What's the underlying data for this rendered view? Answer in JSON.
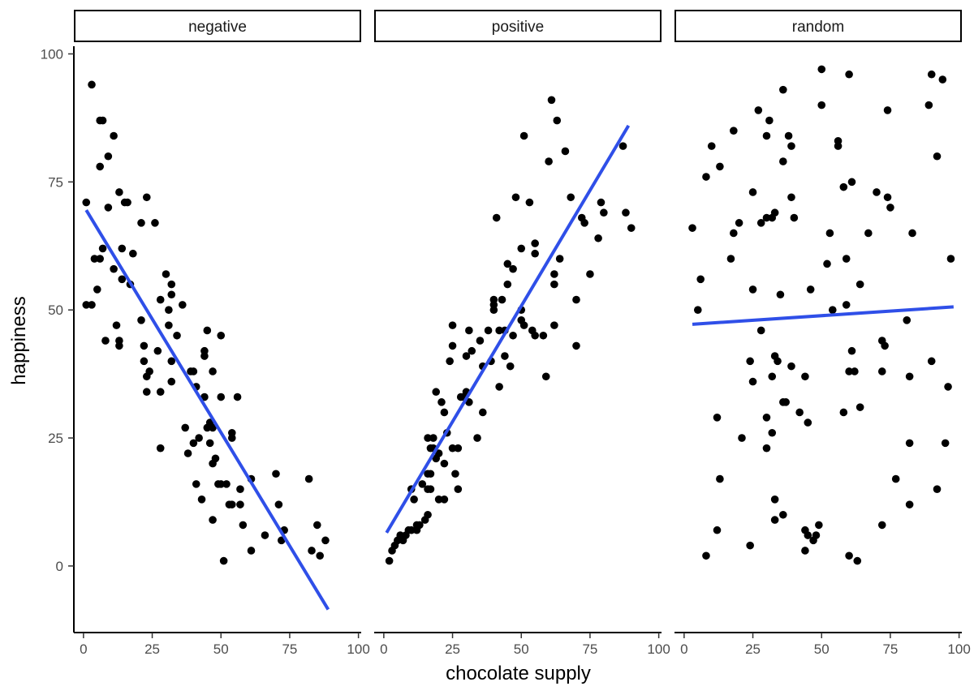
{
  "chart_data": {
    "type": "scatter",
    "xlabel": "chocolate supply",
    "ylabel": "happiness",
    "xlim": [
      -3.5,
      101
    ],
    "ylim": [
      -13,
      101.5
    ],
    "x_ticks": [
      0,
      25,
      50,
      75,
      100
    ],
    "y_ticks": [
      0,
      25,
      50,
      75,
      100
    ],
    "grid": false,
    "point_color": "#000000",
    "fit_color": "#2f4fe8",
    "panels": [
      {
        "name": "negative",
        "fit": {
          "x": [
            1,
            89
          ],
          "y": [
            69.5,
            -8.5
          ]
        },
        "points": [
          [
            1,
            71
          ],
          [
            1,
            51
          ],
          [
            3,
            94
          ],
          [
            3,
            51
          ],
          [
            4,
            60
          ],
          [
            5,
            54
          ],
          [
            6,
            78
          ],
          [
            6,
            60
          ],
          [
            6,
            87
          ],
          [
            7,
            87
          ],
          [
            7,
            62
          ],
          [
            8,
            44
          ],
          [
            9,
            70
          ],
          [
            9,
            80
          ],
          [
            11,
            84
          ],
          [
            11,
            58
          ],
          [
            12,
            47
          ],
          [
            13,
            73
          ],
          [
            13,
            44
          ],
          [
            13,
            43
          ],
          [
            14,
            62
          ],
          [
            14,
            56
          ],
          [
            15,
            71
          ],
          [
            16,
            71
          ],
          [
            17,
            55
          ],
          [
            18,
            61
          ],
          [
            21,
            67
          ],
          [
            21,
            48
          ],
          [
            22,
            43
          ],
          [
            22,
            40
          ],
          [
            23,
            72
          ],
          [
            23,
            37
          ],
          [
            23,
            34
          ],
          [
            24,
            38
          ],
          [
            26,
            67
          ],
          [
            27,
            42
          ],
          [
            28,
            52
          ],
          [
            28,
            34
          ],
          [
            28,
            23
          ],
          [
            30,
            57
          ],
          [
            31,
            50
          ],
          [
            31,
            47
          ],
          [
            32,
            55
          ],
          [
            32,
            53
          ],
          [
            32,
            40
          ],
          [
            32,
            36
          ],
          [
            34,
            45
          ],
          [
            36,
            51
          ],
          [
            37,
            27
          ],
          [
            38,
            22
          ],
          [
            39,
            38
          ],
          [
            40,
            38
          ],
          [
            40,
            24
          ],
          [
            41,
            35
          ],
          [
            41,
            16
          ],
          [
            42,
            25
          ],
          [
            43,
            13
          ],
          [
            44,
            42
          ],
          [
            44,
            41
          ],
          [
            44,
            33
          ],
          [
            45,
            46
          ],
          [
            45,
            27
          ],
          [
            46,
            24
          ],
          [
            46,
            28
          ],
          [
            47,
            27
          ],
          [
            47,
            38
          ],
          [
            47,
            20
          ],
          [
            47,
            9
          ],
          [
            48,
            21
          ],
          [
            49,
            16
          ],
          [
            50,
            45
          ],
          [
            50,
            33
          ],
          [
            50,
            16
          ],
          [
            51,
            1
          ],
          [
            52,
            16
          ],
          [
            53,
            12
          ],
          [
            54,
            12
          ],
          [
            54,
            26
          ],
          [
            54,
            25
          ],
          [
            56,
            33
          ],
          [
            57,
            15
          ],
          [
            57,
            12
          ],
          [
            58,
            8
          ],
          [
            61,
            3
          ],
          [
            61,
            17
          ],
          [
            66,
            6
          ],
          [
            70,
            18
          ],
          [
            71,
            12
          ],
          [
            72,
            5
          ],
          [
            73,
            7
          ],
          [
            82,
            17
          ],
          [
            83,
            3
          ],
          [
            85,
            8
          ],
          [
            86,
            2
          ],
          [
            88,
            5
          ]
        ]
      },
      {
        "name": "positive",
        "fit": {
          "x": [
            1,
            89
          ],
          "y": [
            6.5,
            86
          ]
        },
        "points": [
          [
            2,
            1
          ],
          [
            3,
            3
          ],
          [
            4,
            4
          ],
          [
            5,
            5
          ],
          [
            6,
            6
          ],
          [
            7,
            5
          ],
          [
            8,
            6
          ],
          [
            9,
            7
          ],
          [
            10,
            7
          ],
          [
            10,
            15
          ],
          [
            11,
            13
          ],
          [
            12,
            8
          ],
          [
            12,
            7
          ],
          [
            13,
            8
          ],
          [
            14,
            16
          ],
          [
            15,
            9
          ],
          [
            16,
            10
          ],
          [
            16,
            18
          ],
          [
            16,
            15
          ],
          [
            16,
            25
          ],
          [
            17,
            23
          ],
          [
            17,
            18
          ],
          [
            17,
            15
          ],
          [
            18,
            25
          ],
          [
            18,
            23
          ],
          [
            19,
            34
          ],
          [
            19,
            21
          ],
          [
            20,
            13
          ],
          [
            20,
            22
          ],
          [
            21,
            32
          ],
          [
            22,
            13
          ],
          [
            22,
            30
          ],
          [
            22,
            20
          ],
          [
            23,
            26
          ],
          [
            24,
            40
          ],
          [
            25,
            47
          ],
          [
            25,
            23
          ],
          [
            25,
            43
          ],
          [
            26,
            18
          ],
          [
            27,
            15
          ],
          [
            27,
            23
          ],
          [
            28,
            33
          ],
          [
            29,
            33
          ],
          [
            30,
            41
          ],
          [
            30,
            34
          ],
          [
            31,
            46
          ],
          [
            31,
            32
          ],
          [
            32,
            42
          ],
          [
            34,
            25
          ],
          [
            35,
            44
          ],
          [
            36,
            30
          ],
          [
            36,
            39
          ],
          [
            38,
            46
          ],
          [
            39,
            40
          ],
          [
            40,
            51
          ],
          [
            40,
            52
          ],
          [
            40,
            50
          ],
          [
            41,
            68
          ],
          [
            42,
            46
          ],
          [
            42,
            35
          ],
          [
            43,
            52
          ],
          [
            44,
            46
          ],
          [
            44,
            41
          ],
          [
            45,
            59
          ],
          [
            45,
            55
          ],
          [
            46,
            39
          ],
          [
            47,
            45
          ],
          [
            47,
            58
          ],
          [
            48,
            72
          ],
          [
            50,
            48
          ],
          [
            50,
            62
          ],
          [
            50,
            50
          ],
          [
            51,
            47
          ],
          [
            51,
            84
          ],
          [
            53,
            71
          ],
          [
            54,
            46
          ],
          [
            55,
            45
          ],
          [
            55,
            63
          ],
          [
            55,
            61
          ],
          [
            58,
            45
          ],
          [
            59,
            37
          ],
          [
            60,
            79
          ],
          [
            61,
            91
          ],
          [
            62,
            47
          ],
          [
            62,
            57
          ],
          [
            62,
            55
          ],
          [
            63,
            87
          ],
          [
            64,
            60
          ],
          [
            66,
            81
          ],
          [
            68,
            72
          ],
          [
            70,
            43
          ],
          [
            70,
            52
          ],
          [
            72,
            68
          ],
          [
            73,
            67
          ],
          [
            75,
            57
          ],
          [
            78,
            64
          ],
          [
            79,
            71
          ],
          [
            80,
            69
          ],
          [
            87,
            82
          ],
          [
            88,
            69
          ],
          [
            90,
            66
          ]
        ]
      },
      {
        "name": "random",
        "fit": {
          "x": [
            3,
            98
          ],
          "y": [
            47.2,
            50.6
          ]
        },
        "points": [
          [
            3,
            66
          ],
          [
            5,
            50
          ],
          [
            6,
            56
          ],
          [
            8,
            76
          ],
          [
            8,
            2
          ],
          [
            10,
            82
          ],
          [
            12,
            29
          ],
          [
            12,
            7
          ],
          [
            13,
            78
          ],
          [
            13,
            17
          ],
          [
            17,
            60
          ],
          [
            18,
            65
          ],
          [
            18,
            85
          ],
          [
            20,
            67
          ],
          [
            21,
            25
          ],
          [
            24,
            4
          ],
          [
            24,
            40
          ],
          [
            25,
            36
          ],
          [
            25,
            54
          ],
          [
            25,
            73
          ],
          [
            27,
            89
          ],
          [
            28,
            46
          ],
          [
            28,
            67
          ],
          [
            30,
            68
          ],
          [
            30,
            84
          ],
          [
            30,
            29
          ],
          [
            30,
            23
          ],
          [
            31,
            87
          ],
          [
            32,
            68
          ],
          [
            32,
            37
          ],
          [
            32,
            26
          ],
          [
            33,
            69
          ],
          [
            33,
            9
          ],
          [
            33,
            13
          ],
          [
            33,
            41
          ],
          [
            34,
            40
          ],
          [
            35,
            53
          ],
          [
            36,
            93
          ],
          [
            36,
            79
          ],
          [
            36,
            10
          ],
          [
            36,
            32
          ],
          [
            37,
            32
          ],
          [
            38,
            84
          ],
          [
            39,
            82
          ],
          [
            39,
            72
          ],
          [
            39,
            39
          ],
          [
            40,
            68
          ],
          [
            42,
            30
          ],
          [
            44,
            37
          ],
          [
            44,
            7
          ],
          [
            44,
            3
          ],
          [
            45,
            6
          ],
          [
            45,
            28
          ],
          [
            46,
            54
          ],
          [
            47,
            5
          ],
          [
            48,
            6
          ],
          [
            49,
            8
          ],
          [
            50,
            97
          ],
          [
            50,
            90
          ],
          [
            52,
            59
          ],
          [
            53,
            65
          ],
          [
            54,
            50
          ],
          [
            56,
            82
          ],
          [
            56,
            83
          ],
          [
            58,
            74
          ],
          [
            58,
            30
          ],
          [
            59,
            60
          ],
          [
            59,
            51
          ],
          [
            60,
            2
          ],
          [
            60,
            96
          ],
          [
            60,
            38
          ],
          [
            61,
            75
          ],
          [
            61,
            42
          ],
          [
            62,
            38
          ],
          [
            63,
            1
          ],
          [
            64,
            55
          ],
          [
            64,
            31
          ],
          [
            67,
            65
          ],
          [
            70,
            73
          ],
          [
            72,
            8
          ],
          [
            72,
            38
          ],
          [
            72,
            44
          ],
          [
            73,
            43
          ],
          [
            74,
            89
          ],
          [
            74,
            72
          ],
          [
            75,
            70
          ],
          [
            77,
            17
          ],
          [
            81,
            48
          ],
          [
            82,
            24
          ],
          [
            82,
            12
          ],
          [
            82,
            37
          ],
          [
            83,
            65
          ],
          [
            89,
            90
          ],
          [
            90,
            96
          ],
          [
            90,
            40
          ],
          [
            92,
            80
          ],
          [
            92,
            15
          ],
          [
            94,
            95
          ],
          [
            95,
            24
          ],
          [
            96,
            35
          ],
          [
            97,
            60
          ]
        ]
      }
    ]
  }
}
